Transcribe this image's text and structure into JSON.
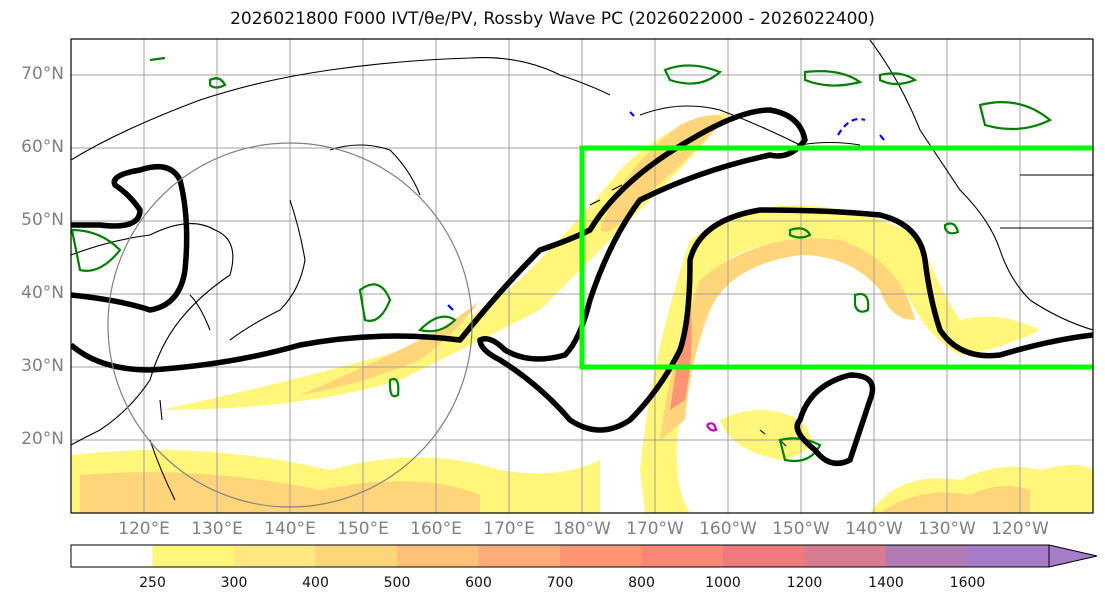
{
  "title": "2026021800 F000 IVT/θe/PV, Rossby Wave PC (2026022000 - 2026022400)",
  "lat_labels": [
    "70°N",
    "60°N",
    "50°N",
    "40°N",
    "30°N",
    "20°N"
  ],
  "lon_labels": [
    "120°E",
    "130°E",
    "140°E",
    "150°E",
    "160°E",
    "170°E",
    "180°W",
    "170°W",
    "160°W",
    "150°W",
    "140°W",
    "130°W",
    "120°W"
  ],
  "colorbar": {
    "levels": [
      "250",
      "300",
      "400",
      "500",
      "600",
      "700",
      "800",
      "1000",
      "1200",
      "1400",
      "1600"
    ],
    "colors": [
      "#ffffff",
      "#fff67a",
      "#ffe880",
      "#ffd57a",
      "#ffc07a",
      "#ffad78",
      "#ff9475",
      "#f98776",
      "#ef7a7d",
      "#d67b92",
      "#b07ab4",
      "#a67cc8"
    ]
  },
  "map_extent": {
    "lon": [
      110,
      250
    ],
    "lat": [
      10,
      75
    ]
  },
  "highlight_box": {
    "color": "#00ff00",
    "lon": [
      180,
      250
    ],
    "lat": [
      30,
      60
    ]
  },
  "colors": {
    "pv_contour": "#000000",
    "theta_contour": "#008000",
    "negative_contour": "#0000ff",
    "coastline": "#000000",
    "grid": "#a0a0a0"
  }
}
